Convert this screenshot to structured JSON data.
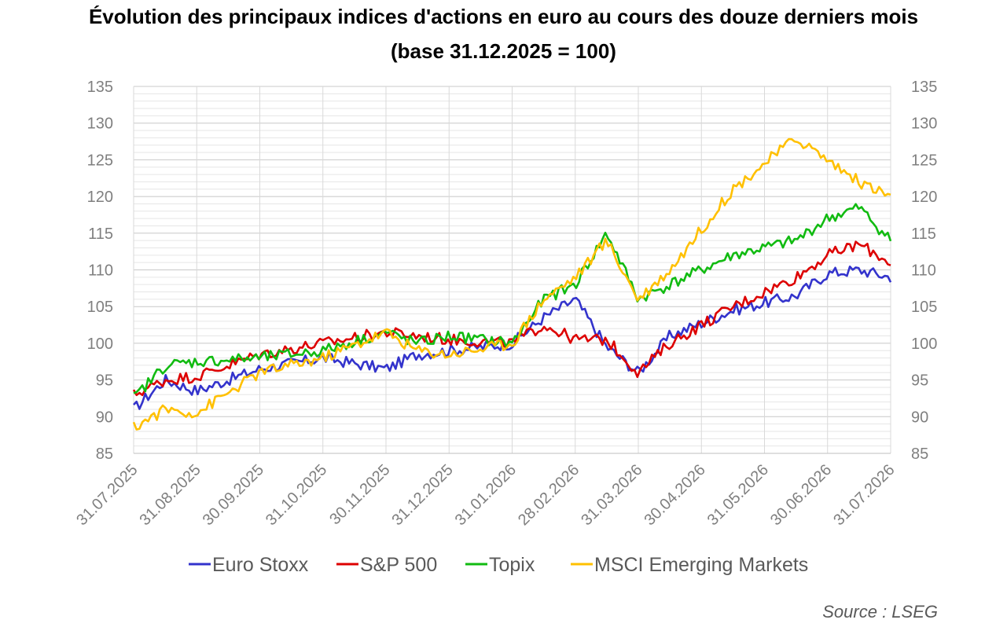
{
  "chart_data": {
    "type": "line",
    "title": "Évolution des principaux indices d'actions en euro au cours des douze derniers mois",
    "subtitle": "(base 31.12.2025 = 100)",
    "xlabel": "",
    "ylabel": "",
    "ylim": [
      85,
      135
    ],
    "y_ticks": [
      "85",
      "90",
      "95",
      "100",
      "105",
      "110",
      "115",
      "120",
      "125",
      "130",
      "135"
    ],
    "x_tick_labels": [
      "31.07.2025",
      "31.08.2025",
      "30.09.2025",
      "31.10.2025",
      "30.11.2025",
      "31.12.2025",
      "31.01.2026",
      "28.02.2026",
      "31.03.2026",
      "30.04.2026",
      "31.05.2026",
      "30.06.2026",
      "31.07.2026"
    ],
    "grid": true,
    "legend_position": "bottom",
    "source": "Source : LSEG",
    "series": [
      {
        "name": "Euro Stoxx",
        "color": "#3333cc",
        "values": [
          91,
          95,
          93.5,
          96.5,
          98,
          96.5,
          98.5,
          99,
          100,
          103.5,
          106,
          99.5,
          96,
          101,
          104.5,
          106.5,
          109.5,
          110,
          109
        ]
      },
      {
        "name": "S&P 500",
        "color": "#dd0000",
        "values": [
          93,
          95,
          95.5,
          98.5,
          100,
          101.5,
          101,
          100.5,
          100,
          102.5,
          100.5,
          100.5,
          96,
          100,
          105,
          109,
          112,
          113.5,
          111
        ]
      },
      {
        "name": "Topix",
        "color": "#11bb11",
        "values": [
          92.5,
          97,
          97.5,
          98,
          99,
          101.5,
          100,
          101,
          100,
          106,
          108,
          115,
          106,
          108,
          112,
          114,
          117,
          118.5,
          114
        ]
      },
      {
        "name": "MSCI Emerging Markets",
        "color": "#ffc000",
        "values": [
          88.5,
          91,
          90.5,
          96,
          98,
          101.5,
          99,
          98.5,
          100,
          106,
          109,
          114,
          106,
          110,
          121,
          128,
          125,
          122,
          120
        ]
      }
    ],
    "x_positions": [
      0,
      0.5,
      1,
      2,
      3,
      4,
      4.5,
      5,
      6,
      6.5,
      7,
      7.5,
      8,
      8.5,
      9.5,
      10.5,
      11,
      11.5,
      12
    ]
  }
}
